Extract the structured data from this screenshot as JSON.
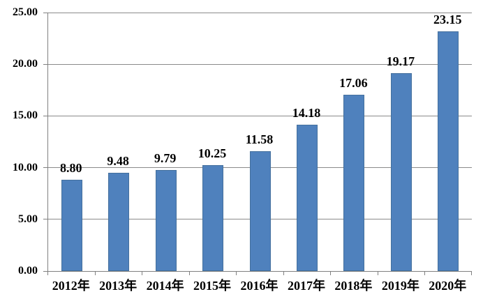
{
  "chart_data": {
    "type": "bar",
    "title": "",
    "xlabel": "",
    "ylabel": "",
    "categories": [
      "2012年",
      "2013年",
      "2014年",
      "2015年",
      "2016年",
      "2017年",
      "2018年",
      "2019年",
      "2020年"
    ],
    "values": [
      8.8,
      9.48,
      9.79,
      10.25,
      11.58,
      14.18,
      17.06,
      19.17,
      23.15
    ],
    "value_labels": [
      "8.80",
      "9.48",
      "9.79",
      "10.25",
      "11.58",
      "14.18",
      "17.06",
      "19.17",
      "23.15"
    ],
    "ylim": [
      0,
      25
    ],
    "ytick_interval": 5,
    "ytick_labels": [
      "0.00",
      "5.00",
      "10.00",
      "15.00",
      "20.00",
      "25.00"
    ],
    "grid": "horizontal",
    "legend_position": "none",
    "colors": {
      "bar_fill": "#4F81BD",
      "bar_border": "#44709D",
      "gridline": "#8A8A8A",
      "axis": "#808080",
      "text": "#000000",
      "background": "#FFFFFF"
    }
  }
}
